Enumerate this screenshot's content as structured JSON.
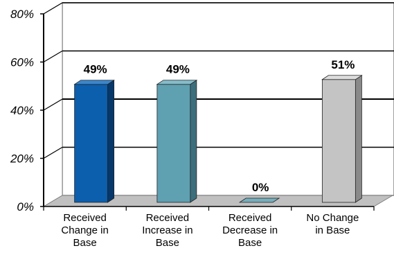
{
  "chart_data": {
    "type": "bar",
    "categories": [
      [
        "Received",
        "Change in",
        "Base"
      ],
      [
        "Received",
        "Increase in",
        "Base"
      ],
      [
        "Received",
        "Decrease in",
        "Base"
      ],
      [
        "No Change",
        "in Base"
      ]
    ],
    "values": [
      49,
      49,
      0,
      51
    ],
    "data_labels": [
      "49%",
      "49%",
      "0%",
      "51%"
    ],
    "ylim": [
      0,
      80
    ],
    "yticks": [
      0,
      20,
      40,
      60,
      80
    ],
    "ytick_labels": [
      "0%",
      "20%",
      "40%",
      "60%",
      "80%"
    ],
    "grid": true,
    "bar_colors": [
      "#0b5fad",
      "#5fa0b1",
      "#4f8fa0",
      "#c4c4c4"
    ],
    "bar_side_colors": [
      "#07386b",
      "#3c6f7c",
      "#3a6e7c",
      "#8a8a8a"
    ],
    "bar_top_colors": [
      "#3a86cc",
      "#84bcc9",
      "#78aebc",
      "#dcdcdc"
    ]
  }
}
